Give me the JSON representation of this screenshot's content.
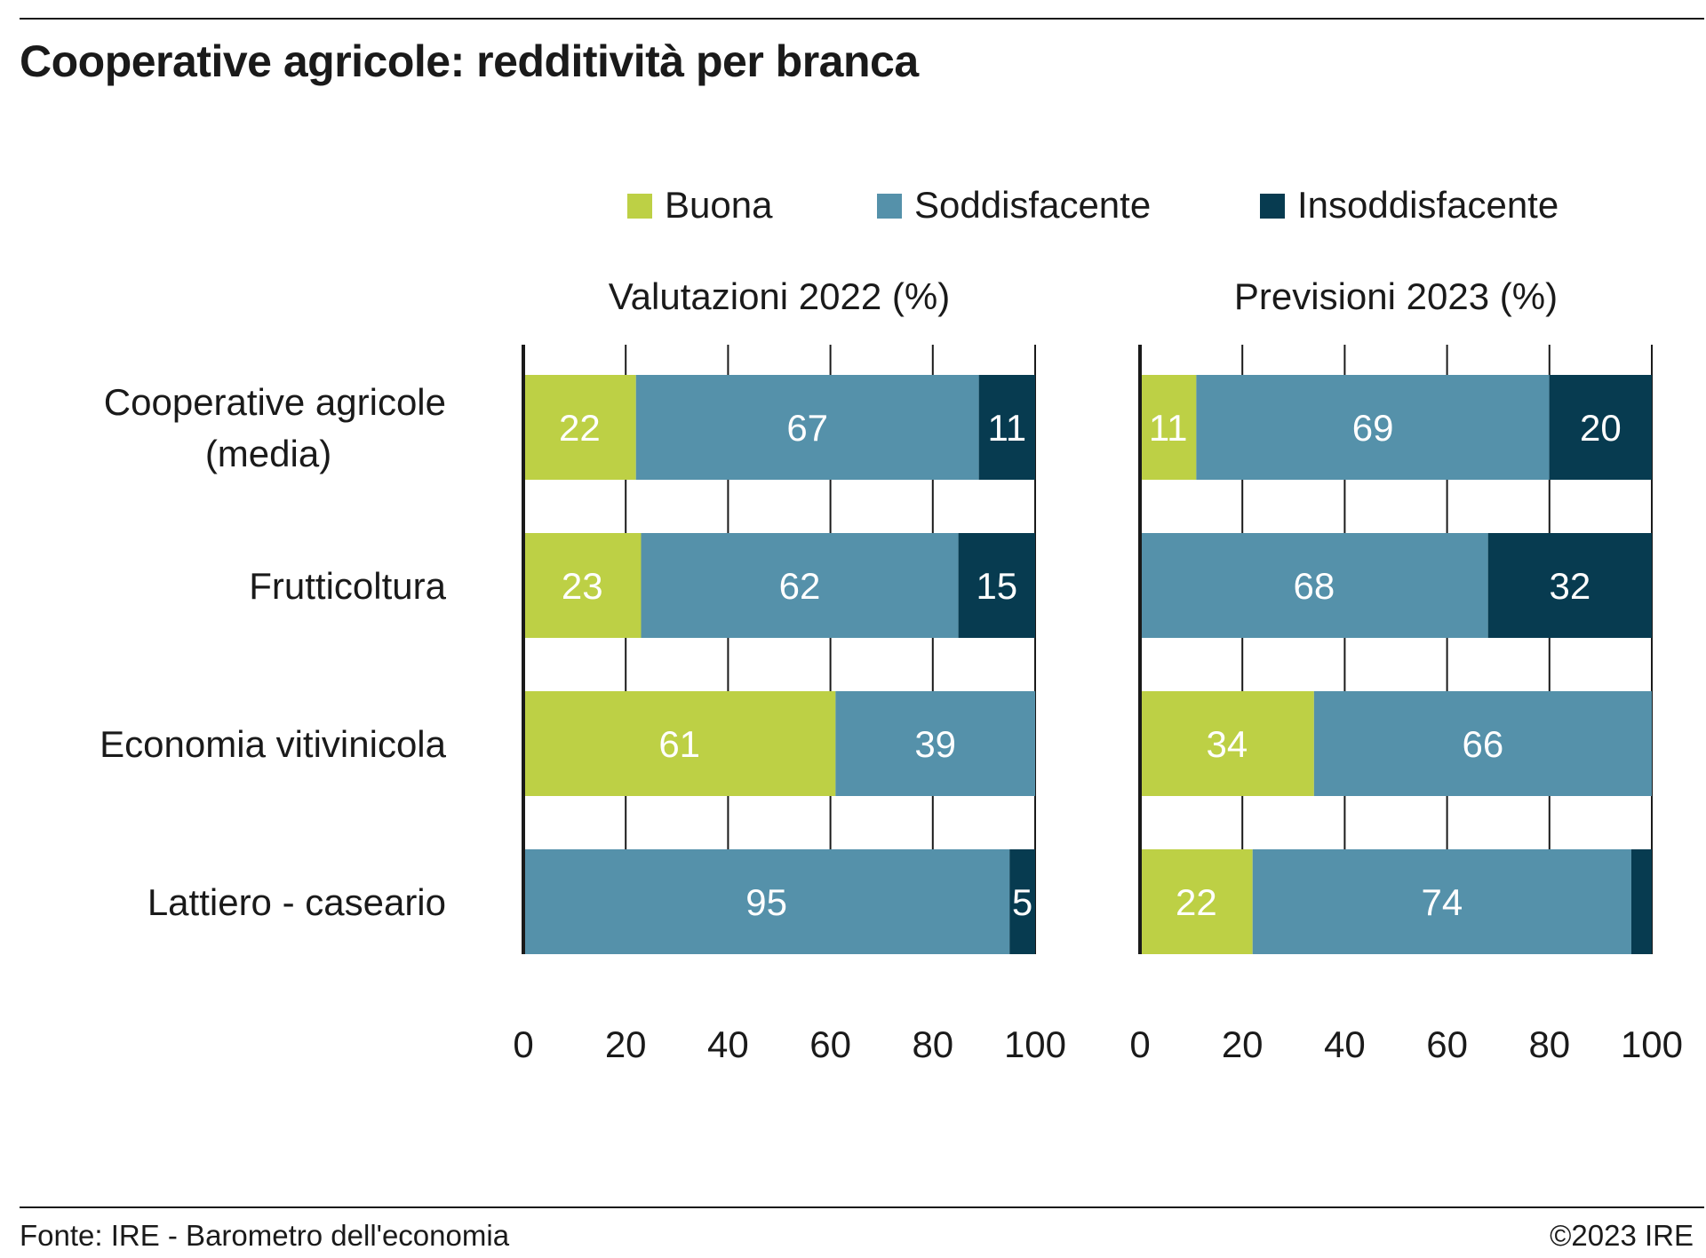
{
  "title": "Cooperative agricole: redditività per branca",
  "source": "Fonte: IRE - Barometro dell'economia",
  "copyright": "©2023 IRE",
  "chart_data": {
    "type": "bar",
    "orientation": "horizontal",
    "stacked": true,
    "categories": [
      "Cooperative agricole\n(media)",
      "Frutticoltura",
      "Economia vitivinicola",
      "Lattiero - caseario"
    ],
    "legend": {
      "placement": "top",
      "entries": [
        {
          "name": "Buona",
          "color": "#bdd045"
        },
        {
          "name": "Soddisfacente",
          "color": "#5591aa"
        },
        {
          "name": "Insoddisfacente",
          "color": "#073b50"
        }
      ]
    },
    "xlim": [
      0,
      100
    ],
    "xticks": [
      "0",
      "20",
      "40",
      "60",
      "80",
      "100"
    ],
    "grid": "vertical",
    "panels": [
      {
        "title": "Valutazioni 2022 (%)",
        "series": [
          {
            "name": "Buona",
            "values": [
              22,
              23,
              61,
              0
            ],
            "labels": [
              "22",
              "23",
              "61",
              ""
            ]
          },
          {
            "name": "Soddisfacente",
            "values": [
              67,
              62,
              39,
              95
            ],
            "labels": [
              "67",
              "62",
              "39",
              "95"
            ]
          },
          {
            "name": "Insoddisfacente",
            "values": [
              11,
              15,
              0,
              5
            ],
            "labels": [
              "11",
              "15",
              "",
              "5"
            ]
          }
        ]
      },
      {
        "title": "Previsioni 2023 (%)",
        "series": [
          {
            "name": "Buona",
            "values": [
              11,
              0,
              34,
              22
            ],
            "labels": [
              "11",
              "",
              "34",
              "22"
            ]
          },
          {
            "name": "Soddisfacente",
            "values": [
              69,
              68,
              66,
              74
            ],
            "labels": [
              "69",
              "68",
              "66",
              "74"
            ]
          },
          {
            "name": "Insoddisfacente",
            "values": [
              20,
              32,
              0,
              4
            ],
            "labels": [
              "20",
              "32",
              "",
              ""
            ]
          }
        ]
      }
    ]
  }
}
